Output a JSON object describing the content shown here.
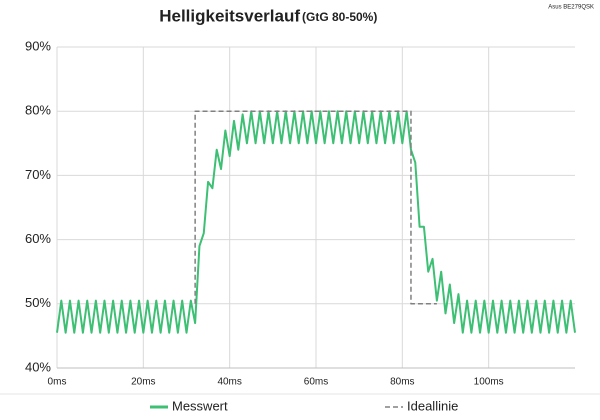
{
  "chart_data": {
    "type": "line",
    "title": "Helligkeitsverlauf",
    "subtitle": "(GtG 80-50%)",
    "note": "Asus BE279QSK",
    "xlim": [
      0,
      120
    ],
    "ylim": [
      40,
      90
    ],
    "xticks": [
      {
        "value": 0,
        "label": "0ms"
      },
      {
        "value": 20,
        "label": "20ms"
      },
      {
        "value": 40,
        "label": "40ms"
      },
      {
        "value": 60,
        "label": "60ms"
      },
      {
        "value": 80,
        "label": "80ms"
      },
      {
        "value": 100,
        "label": "100ms"
      }
    ],
    "yticks": [
      {
        "value": 40,
        "label": "40%"
      },
      {
        "value": 50,
        "label": "50%"
      },
      {
        "value": 60,
        "label": "60%"
      },
      {
        "value": 70,
        "label": "70%"
      },
      {
        "value": 80,
        "label": "80%"
      },
      {
        "value": 90,
        "label": "90%"
      }
    ],
    "grid": true,
    "legend": "bottom",
    "series": [
      {
        "name": "Messwert",
        "color": "#3dbf74",
        "dashed": false,
        "x": [
          0,
          1,
          2,
          3,
          4,
          5,
          6,
          7,
          8,
          9,
          10,
          11,
          12,
          13,
          14,
          15,
          16,
          17,
          18,
          19,
          20,
          21,
          22,
          23,
          24,
          25,
          26,
          27,
          28,
          29,
          30,
          31,
          32,
          33,
          34,
          35,
          36,
          37,
          38,
          39,
          40,
          41,
          42,
          43,
          44,
          45,
          46,
          47,
          48,
          49,
          50,
          51,
          52,
          53,
          54,
          55,
          56,
          57,
          58,
          59,
          60,
          61,
          62,
          63,
          64,
          65,
          66,
          67,
          68,
          69,
          70,
          71,
          72,
          73,
          74,
          75,
          76,
          77,
          78,
          79,
          80,
          81,
          82,
          83,
          84,
          85,
          86,
          87,
          88,
          89,
          90,
          91,
          92,
          93,
          94,
          95,
          96,
          97,
          98,
          99,
          100,
          101,
          102,
          103,
          104,
          105,
          106,
          107,
          108,
          109,
          110,
          111,
          112,
          113,
          114,
          115,
          116,
          117,
          118,
          119,
          120
        ],
        "values": [
          45.5,
          50.5,
          45.5,
          50.5,
          45.5,
          50.5,
          45.5,
          50.5,
          45.5,
          50.5,
          45.5,
          50.5,
          45.5,
          50.5,
          45.5,
          50.5,
          45.5,
          50.5,
          45.5,
          50.5,
          45.5,
          50.5,
          45.5,
          50.5,
          45.5,
          50.5,
          45.5,
          50.5,
          45.5,
          50.5,
          45.5,
          50.5,
          47,
          59,
          61,
          69,
          68,
          74,
          71,
          77,
          73,
          78.5,
          74,
          79.5,
          75,
          80,
          75,
          80,
          75,
          80,
          75,
          80,
          75,
          80,
          75,
          80,
          75,
          80,
          75,
          80,
          75,
          80,
          75,
          80,
          75,
          80,
          75,
          80,
          75,
          80,
          75,
          80,
          75,
          80,
          75,
          80,
          75,
          80,
          75,
          80,
          75,
          80,
          74,
          72,
          62,
          62,
          55,
          57,
          50.5,
          55,
          48.5,
          53,
          47,
          51.5,
          45.5,
          50.5,
          45.5,
          50.5,
          45.5,
          50.5,
          45.5,
          50.5,
          45.5,
          50.5,
          45.5,
          50.5,
          45.5,
          50.5,
          45.5,
          50.5,
          45.5,
          50.5,
          45.5,
          50.5,
          45.5,
          50.5,
          45.5,
          50.5,
          45.5,
          50.5,
          45.5
        ]
      },
      {
        "name": "Ideallinie",
        "color": "#808080",
        "dashed": true,
        "x": [
          32,
          32,
          82,
          82,
          88
        ],
        "values": [
          50,
          80,
          80,
          50,
          50
        ]
      }
    ]
  }
}
